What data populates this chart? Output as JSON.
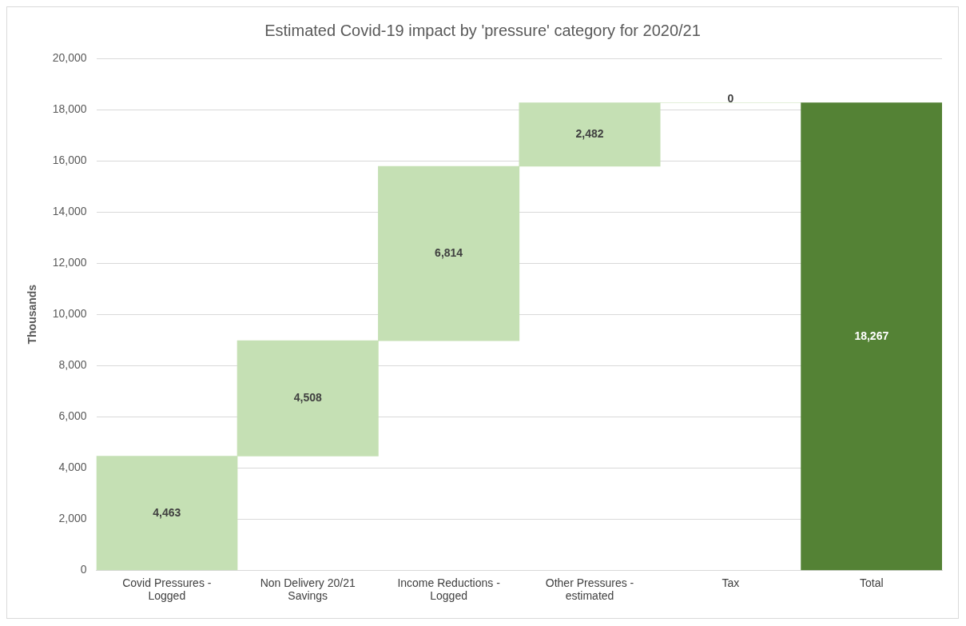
{
  "chart_data": {
    "type": "bar",
    "title": "Estimated Covid-19 impact by 'pressure' category for 2020/21",
    "ylabel": "Thousands",
    "categories": [
      "Covid Pressures - Logged",
      "Non Delivery 20/21 Savings",
      "Income Reductions - Logged",
      "Other Pressures - estimated",
      "Tax",
      "Total"
    ],
    "values": [
      4463,
      4508,
      6814,
      2482,
      0,
      18267
    ],
    "base": [
      0,
      4463,
      8971,
      15785,
      18267,
      0
    ],
    "colors": [
      "#c5e0b4",
      "#c5e0b4",
      "#c5e0b4",
      "#c5e0b4",
      "#c5e0b4",
      "#548235"
    ],
    "value_labels": [
      "4,463",
      "4,508",
      "6,814",
      "2,482",
      "0",
      "18,267"
    ],
    "ylim": [
      0,
      20000
    ],
    "yticks": [
      0,
      {
        "value": 2000,
        "label": "2,000"
      },
      {
        "value": 4000,
        "label": "4,000"
      },
      {
        "value": 6000,
        "label": "6,000"
      },
      {
        "value": 8000,
        "label": "8,000"
      },
      {
        "value": 10000,
        "label": "10,000"
      },
      {
        "value": 12000,
        "label": "12,000"
      },
      {
        "value": 14000,
        "label": "14,000"
      },
      {
        "value": 16000,
        "label": "16,000"
      },
      {
        "value": 18000,
        "label": "18,000"
      },
      {
        "value": 20000,
        "label": "20,000"
      }
    ],
    "grid": "y",
    "legend": false
  }
}
